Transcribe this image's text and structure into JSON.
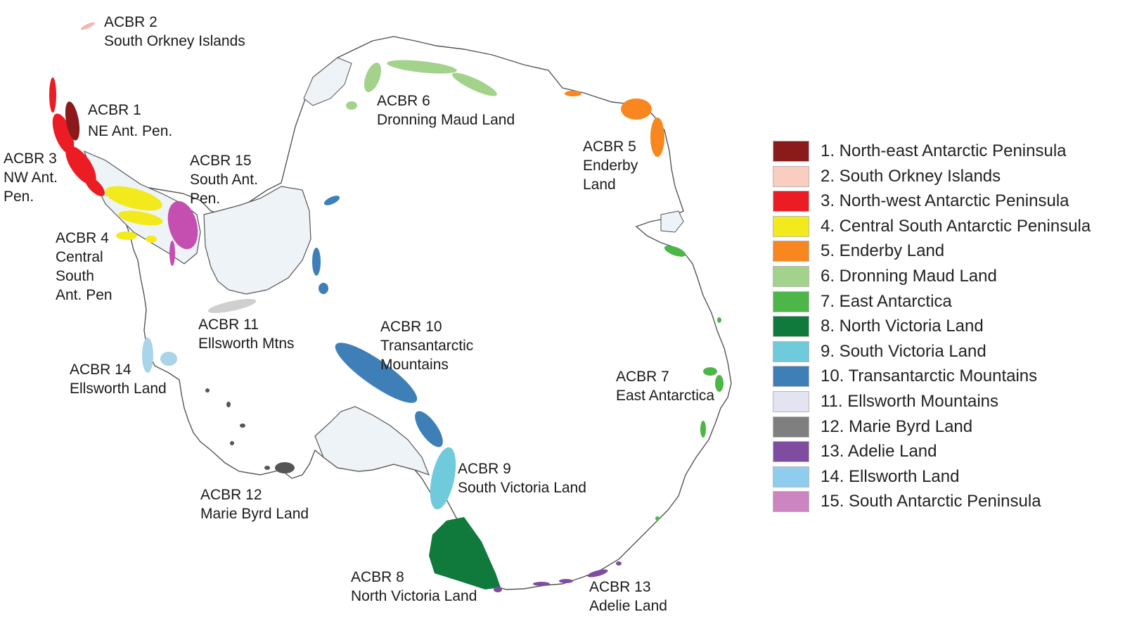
{
  "map_labels": {
    "acbr1": {
      "code": "ACBR 1",
      "name": "NE Ant. Pen."
    },
    "acbr2": {
      "code": "ACBR 2",
      "name": "South Orkney Islands"
    },
    "acbr3": {
      "code": "ACBR 3",
      "line1": "NW Ant.",
      "line2": "Pen."
    },
    "acbr4": {
      "code": "ACBR 4",
      "line1": "Central",
      "line2": "South",
      "line3": "Ant. Pen"
    },
    "acbr5": {
      "code": "ACBR 5",
      "line1": "Enderby",
      "line2": "Land"
    },
    "acbr6": {
      "code": "ACBR 6",
      "name": "Dronning Maud Land"
    },
    "acbr7": {
      "code": "ACBR 7",
      "name": "East Antarctica"
    },
    "acbr8": {
      "code": "ACBR 8",
      "name": "North Victoria Land"
    },
    "acbr9": {
      "code": "ACBR 9",
      "name": "South Victoria Land"
    },
    "acbr10": {
      "code": "ACBR 10",
      "line1": "Transantarctic",
      "line2": "Mountains"
    },
    "acbr11": {
      "code": "ACBR 11",
      "name": "Ellsworth Mtns"
    },
    "acbr12": {
      "code": "ACBR 12",
      "name": "Marie Byrd Land"
    },
    "acbr13": {
      "code": "ACBR 13",
      "name": "Adelie Land"
    },
    "acbr14": {
      "code": "ACBR 14",
      "name": "Ellsworth Land"
    },
    "acbr15": {
      "code": "ACBR 15",
      "line1": "South Ant.",
      "line2": "Pen."
    }
  },
  "legend": [
    {
      "label": "1. North-east Antarctic Peninsula",
      "color": "#8b1a1a"
    },
    {
      "label": "2. South Orkney Islands",
      "color": "#f9cdbf"
    },
    {
      "label": "3. North-west Antarctic Peninsula",
      "color": "#ec1c24"
    },
    {
      "label": "4. Central South Antarctic Peninsula",
      "color": "#f2ea1c"
    },
    {
      "label": "5. Enderby Land",
      "color": "#f7871e"
    },
    {
      "label": "6. Dronning Maud Land",
      "color": "#a3d38b"
    },
    {
      "label": "7. East Antarctica",
      "color": "#4cb748"
    },
    {
      "label": "8. North Victoria Land",
      "color": "#0f7a3c"
    },
    {
      "label": "9. South Victoria Land",
      "color": "#6fcbdc"
    },
    {
      "label": "10. Transantarctic Mountains",
      "color": "#3f7fb8"
    },
    {
      "label": "11. Ellsworth Mountains",
      "color": "#e4e3f1"
    },
    {
      "label": "12. Marie Byrd Land",
      "color": "#7f7f7f"
    },
    {
      "label": "13. Adelie Land",
      "color": "#7e4ca0"
    },
    {
      "label": "14. Ellsworth Land",
      "color": "#8fcdee"
    },
    {
      "label": "15. South Antarctic Peninsula",
      "color": "#cc85c0"
    }
  ],
  "colors": {
    "ice_shelf": "#eef3f8",
    "coastline": "#555555",
    "open_land": "#ffffff"
  }
}
